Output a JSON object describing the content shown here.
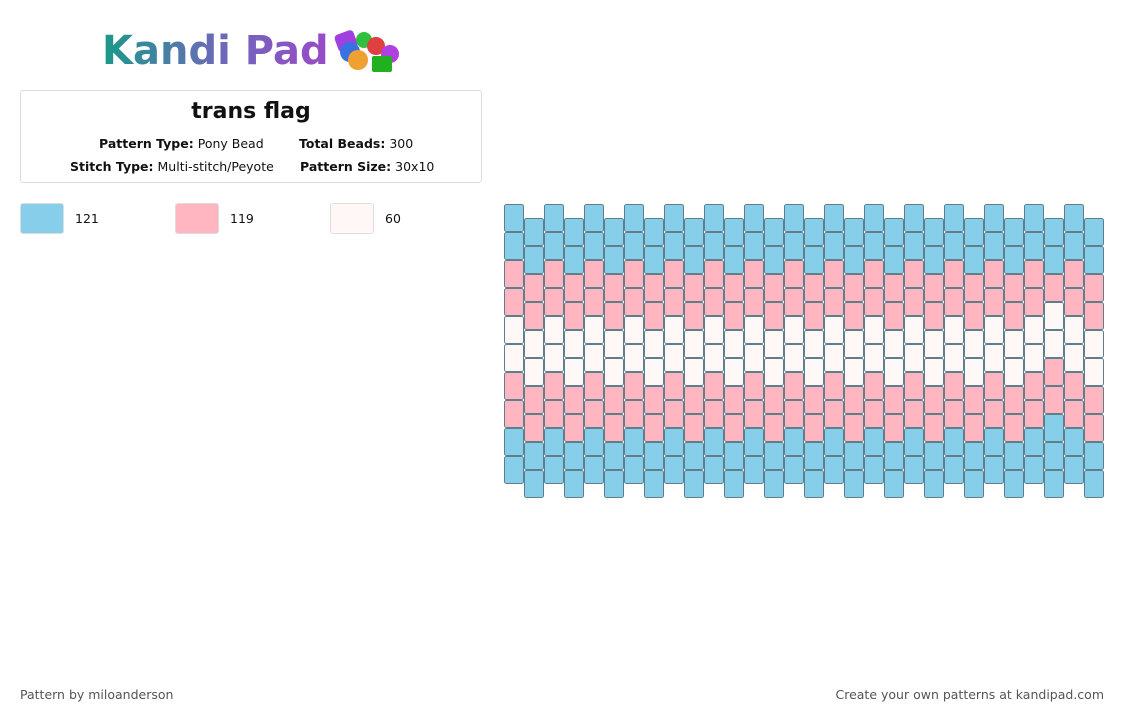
{
  "logo": "Kandi Pad",
  "title": "trans flag",
  "fields": [
    {
      "label": "Pattern Type:",
      "value": "Pony Bead"
    },
    {
      "label": "Total Beads:",
      "value": "300"
    },
    {
      "label": "Stitch Type:",
      "value": "Multi-stitch/Peyote"
    },
    {
      "label": "Pattern Size:",
      "value": "30x10"
    }
  ],
  "colors": [
    {
      "color": "#87ceeb",
      "count": 121
    },
    {
      "color": "#ffb6c1",
      "count": 119
    },
    {
      "color": "#fff8f6",
      "count": 60
    }
  ],
  "beads": [
    [
      0,
      0,
      1,
      1,
      2,
      2,
      1,
      1,
      0,
      0
    ],
    [
      0,
      0,
      1,
      1,
      2,
      2,
      1,
      1,
      0,
      0
    ],
    [
      0,
      0,
      1,
      1,
      2,
      2,
      1,
      1,
      0,
      0
    ],
    [
      0,
      0,
      1,
      1,
      2,
      2,
      1,
      1,
      0,
      0
    ],
    [
      0,
      0,
      1,
      1,
      2,
      2,
      1,
      1,
      0,
      0
    ],
    [
      0,
      0,
      1,
      1,
      2,
      2,
      1,
      1,
      0,
      0
    ],
    [
      0,
      0,
      1,
      1,
      2,
      2,
      1,
      1,
      0,
      0
    ],
    [
      0,
      0,
      1,
      1,
      2,
      2,
      1,
      1,
      0,
      0
    ],
    [
      0,
      0,
      1,
      1,
      2,
      2,
      1,
      1,
      0,
      0
    ],
    [
      0,
      0,
      1,
      1,
      2,
      2,
      1,
      1,
      0,
      0
    ],
    [
      0,
      0,
      1,
      1,
      2,
      2,
      1,
      1,
      0,
      0
    ],
    [
      0,
      0,
      1,
      1,
      2,
      2,
      1,
      1,
      0,
      0
    ],
    [
      0,
      0,
      1,
      1,
      2,
      2,
      1,
      1,
      0,
      0
    ],
    [
      0,
      0,
      1,
      1,
      2,
      2,
      1,
      1,
      0,
      0
    ],
    [
      0,
      0,
      1,
      1,
      2,
      2,
      1,
      1,
      0,
      0
    ],
    [
      0,
      0,
      1,
      1,
      2,
      2,
      1,
      1,
      0,
      0
    ],
    [
      0,
      0,
      1,
      1,
      2,
      2,
      1,
      1,
      0,
      0
    ],
    [
      0,
      0,
      1,
      1,
      2,
      2,
      1,
      1,
      0,
      0
    ],
    [
      0,
      0,
      1,
      1,
      2,
      2,
      1,
      1,
      0,
      0
    ],
    [
      0,
      0,
      1,
      1,
      2,
      2,
      1,
      1,
      0,
      0
    ],
    [
      0,
      0,
      1,
      1,
      2,
      2,
      1,
      1,
      0,
      0
    ],
    [
      0,
      0,
      1,
      1,
      2,
      2,
      1,
      1,
      0,
      0
    ],
    [
      0,
      0,
      1,
      1,
      2,
      2,
      1,
      1,
      0,
      0
    ],
    [
      0,
      0,
      1,
      1,
      2,
      2,
      1,
      1,
      0,
      0
    ],
    [
      0,
      0,
      1,
      1,
      2,
      2,
      1,
      1,
      0,
      0
    ],
    [
      0,
      0,
      1,
      1,
      2,
      2,
      1,
      1,
      0,
      0
    ],
    [
      0,
      0,
      1,
      1,
      2,
      2,
      1,
      1,
      0,
      0
    ],
    [
      0,
      0,
      1,
      2,
      2,
      1,
      1,
      0,
      0,
      0
    ],
    [
      0,
      0,
      1,
      1,
      2,
      2,
      1,
      1,
      0,
      0
    ],
    [
      0,
      0,
      1,
      1,
      2,
      2,
      1,
      1,
      0,
      0
    ]
  ],
  "footer": {
    "left": "Pattern by miloanderson",
    "right": "Create your own patterns at kandipad.com"
  }
}
